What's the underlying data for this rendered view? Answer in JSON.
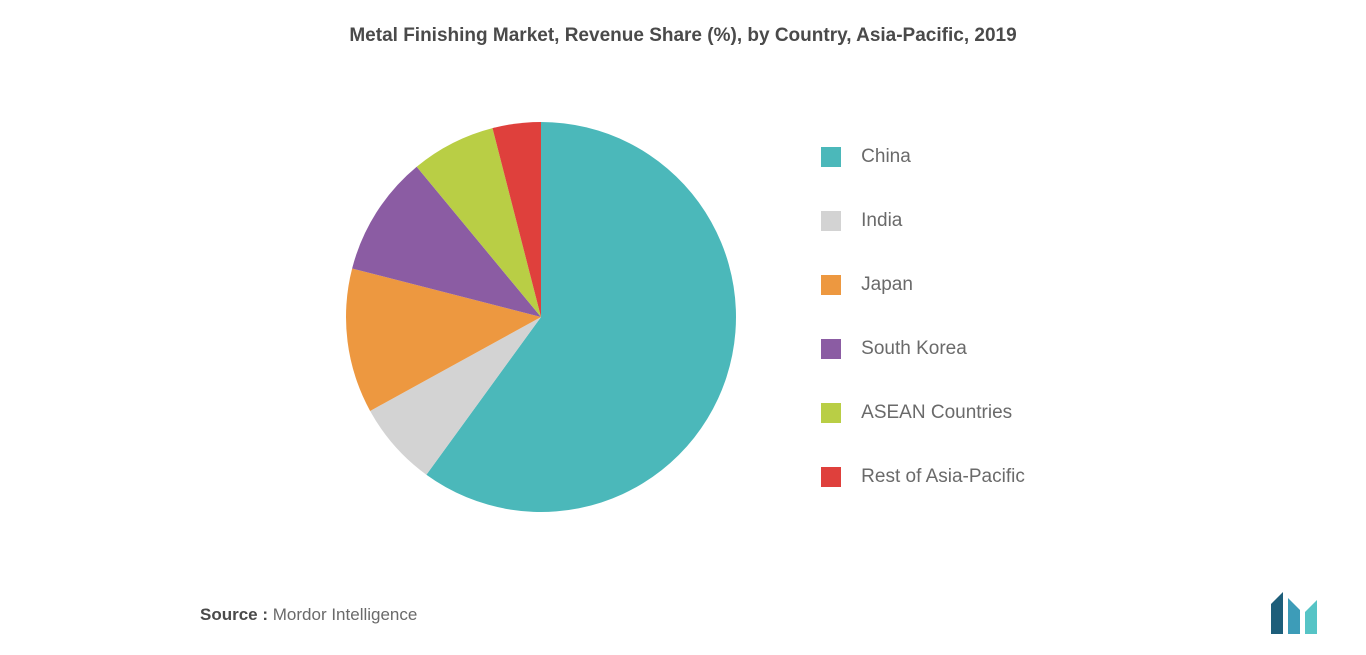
{
  "chart": {
    "type": "pie",
    "title": "Metal Finishing Market, Revenue Share (%), by Country, Asia-Pacific, 2019",
    "title_fontsize": 19,
    "title_color": "#4a4a4a",
    "background_color": "#ffffff",
    "radius": 195,
    "start_angle_deg": 0,
    "slices": [
      {
        "label": "China",
        "value": 60,
        "color": "#4bb8ba"
      },
      {
        "label": "India",
        "value": 7,
        "color": "#d3d3d3"
      },
      {
        "label": "Japan",
        "value": 12,
        "color": "#ed9840"
      },
      {
        "label": "South Korea",
        "value": 10,
        "color": "#8b5ca3"
      },
      {
        "label": "ASEAN Countries",
        "value": 7,
        "color": "#b9ce45"
      },
      {
        "label": "Rest of Asia-Pacific",
        "value": 4,
        "color": "#df403c"
      }
    ],
    "legend": {
      "position": "right",
      "swatch_size": 20,
      "gap": 42,
      "label_fontsize": 19,
      "label_color": "#6a6a6a"
    }
  },
  "footer": {
    "source_label": "Source :",
    "source_text": "Mordor Intelligence",
    "fontsize": 17,
    "label_color": "#4a4a4a",
    "text_color": "#6a6a6a"
  },
  "logo": {
    "name": "mordor-intelligence-logo",
    "bars": [
      {
        "fill": "#1d5e7a"
      },
      {
        "fill": "#3d9cb8"
      },
      {
        "fill": "#56c4c6"
      }
    ]
  }
}
